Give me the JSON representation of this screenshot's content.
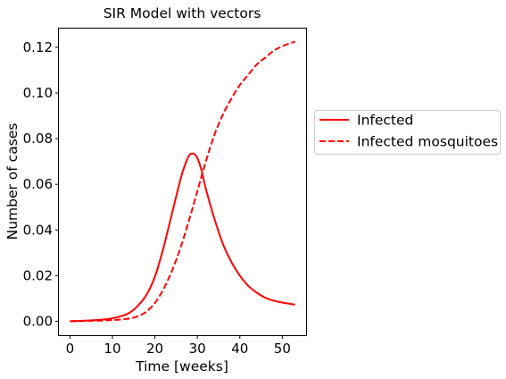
{
  "chart_data": {
    "type": "line",
    "title": "SIR Model with vectors",
    "xlabel": "Time [weeks]",
    "ylabel": "Number of cases",
    "xlim": [
      -2.6,
      55.6
    ],
    "ylim": [
      -0.0061,
      0.1282
    ],
    "xticks": [
      0,
      10,
      20,
      30,
      40,
      50
    ],
    "xtick_labels": [
      "0",
      "10",
      "20",
      "30",
      "40",
      "50"
    ],
    "yticks": [
      0.0,
      0.02,
      0.04,
      0.06,
      0.08,
      0.1,
      0.12
    ],
    "ytick_labels": [
      "0.00",
      "0.02",
      "0.04",
      "0.06",
      "0.08",
      "0.10",
      "0.12"
    ],
    "grid": false,
    "legend_placement": "outside right",
    "series": [
      {
        "name": "Infected",
        "color": "#ff0000",
        "linestyle": "solid",
        "x": [
          0,
          4,
          8,
          10,
          12,
          14,
          16,
          18,
          20,
          22,
          24,
          26,
          27,
          28,
          29,
          30,
          31,
          32,
          34,
          36,
          38,
          40,
          42,
          44,
          46,
          48,
          50,
          53
        ],
        "y": [
          0.0,
          0.0003,
          0.0008,
          0.0013,
          0.0022,
          0.0037,
          0.0068,
          0.0115,
          0.0195,
          0.032,
          0.047,
          0.062,
          0.068,
          0.0725,
          0.0735,
          0.0715,
          0.066,
          0.058,
          0.045,
          0.034,
          0.026,
          0.02,
          0.0155,
          0.0125,
          0.0103,
          0.009,
          0.0082,
          0.0073
        ]
      },
      {
        "name": "Infected mosquitoes",
        "color": "#ff0000",
        "linestyle": "dashed",
        "x": [
          0,
          5,
          10,
          14,
          16,
          18,
          20,
          22,
          24,
          26,
          28,
          30,
          32,
          34,
          36,
          38,
          40,
          42,
          44,
          46,
          48,
          50,
          53
        ],
        "y": [
          0.0,
          0.0002,
          0.0005,
          0.0012,
          0.0022,
          0.0042,
          0.008,
          0.014,
          0.022,
          0.032,
          0.044,
          0.057,
          0.07,
          0.0815,
          0.0905,
          0.0975,
          0.1035,
          0.108,
          0.1125,
          0.1155,
          0.1185,
          0.1205,
          0.1225
        ]
      }
    ]
  }
}
